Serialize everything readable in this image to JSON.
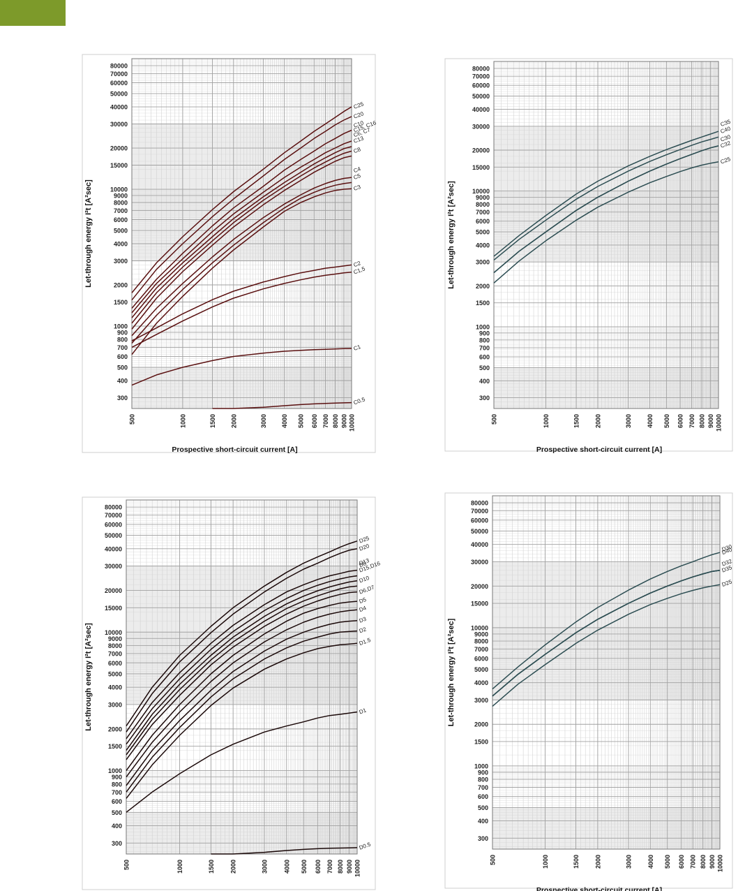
{
  "page": {
    "accent_color": "#7d9a2a",
    "grid_color": "#a0a0a0",
    "band_color": "#ececec"
  },
  "chart_data": [
    {
      "type": "line",
      "xscale": "log",
      "yscale": "log",
      "xlim": [
        500,
        10000
      ],
      "ylim": [
        250,
        90000
      ],
      "grid": true,
      "xlabel": "Prospective short-circuit current [A]",
      "ylabel": "Let-through energy I²t [A²sec]",
      "xticks": [
        500,
        1000,
        1500,
        2000,
        3000,
        4000,
        5000,
        6000,
        7000,
        8000,
        9000,
        10000
      ],
      "yticks": [
        300,
        400,
        500,
        600,
        700,
        800,
        900,
        1000,
        1500,
        2000,
        3000,
        4000,
        5000,
        6000,
        7000,
        8000,
        9000,
        10000,
        15000,
        20000,
        30000,
        40000,
        50000,
        60000,
        70000,
        80000
      ],
      "line_color": "#5a1010",
      "x": [
        500,
        700,
        1000,
        1500,
        2000,
        3000,
        4000,
        5000,
        6000,
        7000,
        8000,
        9000,
        10000
      ],
      "series": [
        {
          "name": "C25",
          "values": [
            1750,
            2900,
            4500,
            7100,
            9600,
            14000,
            18500,
            22500,
            26500,
            30000,
            33500,
            37000,
            40000
          ]
        },
        {
          "name": "C20",
          "values": [
            1550,
            2600,
            4000,
            6300,
            8500,
            12500,
            16500,
            20000,
            23500,
            26500,
            29500,
            32000,
            34000
          ]
        },
        {
          "name": "C15, C16",
          "values": [
            1350,
            2200,
            3400,
            5400,
            7300,
            10500,
            13800,
            16500,
            19000,
            21500,
            23500,
            25500,
            27000
          ]
        },
        {
          "name": "C13",
          "values": [
            1250,
            2050,
            3100,
            4900,
            6600,
            9500,
            12200,
            14500,
            16500,
            18500,
            20000,
            21500,
            22500
          ]
        },
        {
          "name": "C10",
          "values": [
            1150,
            1900,
            2900,
            4500,
            6100,
            8800,
            11200,
            13300,
            15300,
            17000,
            18500,
            19800,
            20500
          ]
        },
        {
          "name": "C8",
          "values": [
            1050,
            1750,
            2700,
            4200,
            5700,
            8300,
            10500,
            12500,
            14300,
            15800,
            17200,
            18300,
            19000
          ]
        },
        {
          "name": "C6, C7",
          "values": [
            950,
            1600,
            2500,
            3900,
            5300,
            7700,
            9800,
            11600,
            13300,
            14700,
            16000,
            17000,
            17500
          ]
        },
        {
          "name": "C5",
          "values": [
            850,
            1350,
            2050,
            3200,
            4300,
            6200,
            7800,
            9100,
            10200,
            11000,
            11600,
            12000,
            12200
          ]
        },
        {
          "name": "C4",
          "values": [
            750,
            1200,
            1850,
            2900,
            3900,
            5700,
            7300,
            8600,
            9500,
            10200,
            10700,
            11000,
            11200
          ]
        },
        {
          "name": "C3",
          "values": [
            620,
            1050,
            1650,
            2650,
            3600,
            5300,
            6900,
            8000,
            8800,
            9400,
            9800,
            10000,
            10100
          ]
        },
        {
          "name": "C2",
          "values": [
            780,
            970,
            1230,
            1560,
            1800,
            2100,
            2300,
            2450,
            2550,
            2650,
            2700,
            2750,
            2800
          ]
        },
        {
          "name": "C1,5",
          "values": [
            700,
            870,
            1090,
            1380,
            1600,
            1870,
            2050,
            2180,
            2280,
            2350,
            2400,
            2450,
            2480
          ]
        },
        {
          "name": "C1",
          "values": [
            370,
            440,
            500,
            560,
            600,
            635,
            655,
            665,
            672,
            677,
            681,
            684,
            686
          ]
        },
        {
          "name": "C0.5",
          "values": [
            null,
            null,
            null,
            235,
            245,
            255,
            262,
            267,
            270,
            272,
            274,
            275,
            276
          ]
        }
      ]
    },
    {
      "type": "line",
      "xscale": "log",
      "yscale": "log",
      "xlim": [
        500,
        10000
      ],
      "ylim": [
        250,
        90000
      ],
      "grid": true,
      "xlabel": "Prospective short-circuit current [A]",
      "ylabel": "Let-through energy I²t [A²sec]",
      "xticks": [
        500,
        1000,
        1500,
        2000,
        3000,
        4000,
        5000,
        6000,
        7000,
        8000,
        9000,
        10000
      ],
      "yticks": [
        300,
        400,
        500,
        600,
        700,
        800,
        900,
        1000,
        1500,
        2000,
        3000,
        4000,
        5000,
        6000,
        7000,
        8000,
        9000,
        10000,
        15000,
        20000,
        30000,
        40000,
        50000,
        60000,
        70000,
        80000
      ],
      "line_color": "#2c4d52",
      "x": [
        500,
        700,
        1000,
        1500,
        2000,
        3000,
        4000,
        5000,
        6000,
        7000,
        8000,
        9000,
        10000
      ],
      "series": [
        {
          "name": "C40",
          "values": [
            3300,
            4700,
            6600,
            9500,
            11800,
            15300,
            18000,
            20200,
            22000,
            23600,
            25000,
            26300,
            27500
          ]
        },
        {
          "name": "C35",
          "values": [
            3100,
            4400,
            6100,
            8700,
            10800,
            14000,
            16500,
            18500,
            20200,
            21700,
            23000,
            24000,
            25000
          ]
        },
        {
          "name": "C32",
          "values": [
            2500,
            3600,
            5000,
            7200,
            9000,
            11800,
            14000,
            15800,
            17300,
            18600,
            19800,
            20800,
            21500
          ]
        },
        {
          "name": "C30",
          "values": [
            2500,
            3600,
            5000,
            7200,
            9000,
            11800,
            14000,
            15800,
            17300,
            18600,
            19800,
            20800,
            21500
          ]
        },
        {
          "name": "C25",
          "values": [
            2100,
            3050,
            4300,
            6100,
            7600,
            9800,
            11500,
            12800,
            13900,
            14800,
            15500,
            16000,
            16400
          ]
        }
      ]
    },
    {
      "type": "line",
      "xscale": "log",
      "yscale": "log",
      "xlim": [
        500,
        10000
      ],
      "ylim": [
        250,
        90000
      ],
      "grid": true,
      "xlabel": "Prospective short-circuit current [A]",
      "ylabel": "Let-through energy I²t [A²sec]",
      "xticks": [
        500,
        1000,
        1500,
        2000,
        3000,
        4000,
        5000,
        6000,
        7000,
        8000,
        9000,
        10000
      ],
      "yticks": [
        300,
        400,
        500,
        600,
        700,
        800,
        900,
        1000,
        1500,
        2000,
        3000,
        4000,
        5000,
        6000,
        7000,
        8000,
        9000,
        10000,
        15000,
        20000,
        30000,
        40000,
        50000,
        60000,
        70000,
        80000
      ],
      "line_color": "#1a0808",
      "x": [
        500,
        700,
        1000,
        1500,
        2000,
        3000,
        4000,
        5000,
        6000,
        7000,
        8000,
        9000,
        10000
      ],
      "series": [
        {
          "name": "D25",
          "values": [
            2100,
            4000,
            6800,
            11000,
            15000,
            21500,
            27000,
            31500,
            35000,
            38000,
            41000,
            43500,
            45500
          ]
        },
        {
          "name": "D20",
          "values": [
            1900,
            3600,
            6100,
            9900,
            13500,
            19500,
            24500,
            28500,
            31500,
            34500,
            37000,
            39000,
            40000
          ]
        },
        {
          "name": "D15,D16",
          "values": [
            1700,
            3100,
            5100,
            8300,
            11200,
            15800,
            19500,
            22000,
            24000,
            25500,
            26500,
            27500,
            28000
          ]
        },
        {
          "name": "D13",
          "values": [
            1550,
            2800,
            4600,
            7500,
            10100,
            14300,
            17500,
            20000,
            21800,
            23200,
            24200,
            25000,
            25500
          ]
        },
        {
          "name": "D10",
          "values": [
            1400,
            2550,
            4200,
            6800,
            9200,
            13000,
            16000,
            18200,
            19900,
            21200,
            22200,
            23000,
            23500
          ]
        },
        {
          "name": "D8",
          "values": [
            1300,
            2350,
            3850,
            6300,
            8500,
            12000,
            14800,
            16800,
            18300,
            19500,
            20500,
            21200,
            21500
          ]
        },
        {
          "name": "D6,D7",
          "values": [
            1200,
            2150,
            3500,
            5800,
            7800,
            11000,
            13500,
            15400,
            16800,
            17900,
            18700,
            19300,
            19500
          ]
        },
        {
          "name": "D5",
          "values": [
            1000,
            1800,
            3000,
            5000,
            6800,
            9700,
            12000,
            13700,
            14800,
            15600,
            16200,
            16500,
            16700
          ]
        },
        {
          "name": "D4",
          "values": [
            900,
            1600,
            2650,
            4400,
            6000,
            8500,
            10400,
            11800,
            12800,
            13500,
            14000,
            14300,
            14500
          ]
        },
        {
          "name": "D3",
          "values": [
            780,
            1400,
            2300,
            3800,
            5200,
            7300,
            8900,
            10000,
            10800,
            11400,
            11800,
            12000,
            12100
          ]
        },
        {
          "name": "D2",
          "values": [
            700,
            1250,
            2050,
            3400,
            4600,
            6400,
            7700,
            8600,
            9200,
            9700,
            10000,
            10100,
            10200
          ]
        },
        {
          "name": "D1.5",
          "values": [
            630,
            1100,
            1800,
            2950,
            3950,
            5400,
            6400,
            7100,
            7600,
            7900,
            8100,
            8200,
            8300
          ]
        },
        {
          "name": "D1",
          "values": [
            500,
            700,
            950,
            1300,
            1550,
            1900,
            2100,
            2250,
            2400,
            2500,
            2550,
            2600,
            2650
          ]
        },
        {
          "name": "D0.5",
          "values": [
            null,
            null,
            null,
            235,
            245,
            257,
            265,
            270,
            273,
            275,
            276,
            277,
            278
          ]
        }
      ]
    },
    {
      "type": "line",
      "xscale": "log",
      "yscale": "log",
      "xlim": [
        500,
        10000
      ],
      "ylim": [
        250,
        90000
      ],
      "grid": true,
      "xlabel": "Prospective short-circuit current [A]",
      "ylabel": "Let-through energy I²t [A²sec]",
      "xticks": [
        500,
        1000,
        1500,
        2000,
        3000,
        4000,
        5000,
        6000,
        7000,
        8000,
        9000,
        10000
      ],
      "yticks": [
        300,
        400,
        500,
        600,
        700,
        800,
        900,
        1000,
        1500,
        2000,
        3000,
        4000,
        5000,
        6000,
        7000,
        8000,
        9000,
        10000,
        15000,
        20000,
        30000,
        40000,
        50000,
        60000,
        70000,
        80000
      ],
      "line_color": "#2c4d52",
      "x": [
        500,
        700,
        1000,
        1500,
        2000,
        3000,
        4000,
        5000,
        6000,
        7000,
        8000,
        9000,
        10000
      ],
      "series": [
        {
          "name": "D40",
          "values": [
            3600,
            5200,
            7500,
            11000,
            14000,
            18700,
            22500,
            25500,
            28000,
            30000,
            32000,
            33700,
            35000
          ]
        },
        {
          "name": "D35",
          "values": [
            3200,
            4600,
            6400,
            9200,
            11500,
            15000,
            17800,
            20000,
            21800,
            23300,
            24500,
            25500,
            26000
          ]
        },
        {
          "name": "D32",
          "values": [
            3200,
            4600,
            6400,
            9200,
            11500,
            15000,
            17800,
            20000,
            21800,
            23300,
            24500,
            25500,
            26000
          ]
        },
        {
          "name": "D30",
          "values": [
            3200,
            4600,
            6400,
            9200,
            11500,
            15000,
            17800,
            20000,
            21800,
            23300,
            24500,
            25500,
            26000
          ]
        },
        {
          "name": "D25",
          "values": [
            2700,
            3900,
            5400,
            7700,
            9600,
            12500,
            14700,
            16300,
            17600,
            18600,
            19400,
            20000,
            20500
          ]
        }
      ]
    }
  ]
}
